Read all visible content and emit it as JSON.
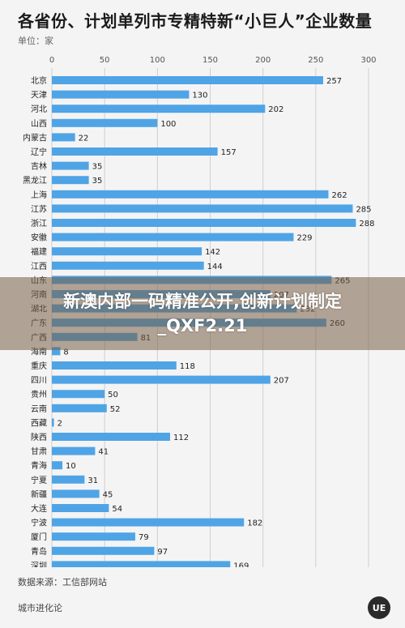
{
  "header": {
    "title": "各省份、计划单列市专精特新“小巨人”企业数量",
    "unit": "单位：家"
  },
  "banner": {
    "line1": "新澳内部一码精准公开,创新计划制定",
    "line2": "_QXF2.21"
  },
  "footer": {
    "source": "数据来源：工信部网站",
    "brand": "城市进化论",
    "logo_text": "UE"
  },
  "colors": {
    "bar": "#4fa4e6",
    "grid": "#cfcfcf",
    "background": "#f4f4f4"
  },
  "chart_data": {
    "type": "bar",
    "orientation": "horizontal",
    "title": "各省份、计划单列市专精特新“小巨人”企业数量",
    "ylabel": "单位：家",
    "xlim": [
      0,
      300
    ],
    "xticks": [
      0,
      50,
      100,
      150,
      200,
      250,
      300
    ],
    "grid": true,
    "categories": [
      "北京",
      "天津",
      "河北",
      "山西",
      "内蒙古",
      "辽宁",
      "吉林",
      "黑龙江",
      "上海",
      "江苏",
      "浙江",
      "安徽",
      "福建",
      "江西",
      "山东",
      "河南",
      "湖北",
      "广东",
      "广西",
      "海南",
      "重庆",
      "四川",
      "贵州",
      "云南",
      "西藏",
      "陕西",
      "甘肃",
      "青海",
      "宁夏",
      "新疆",
      "大连",
      "宁波",
      "厦门",
      "青岛",
      "深圳"
    ],
    "values": [
      257,
      130,
      202,
      100,
      22,
      157,
      35,
      35,
      262,
      285,
      288,
      229,
      142,
      144,
      265,
      207,
      232,
      260,
      81,
      8,
      118,
      207,
      50,
      52,
      2,
      112,
      41,
      10,
      31,
      45,
      54,
      182,
      79,
      97,
      169
    ]
  }
}
